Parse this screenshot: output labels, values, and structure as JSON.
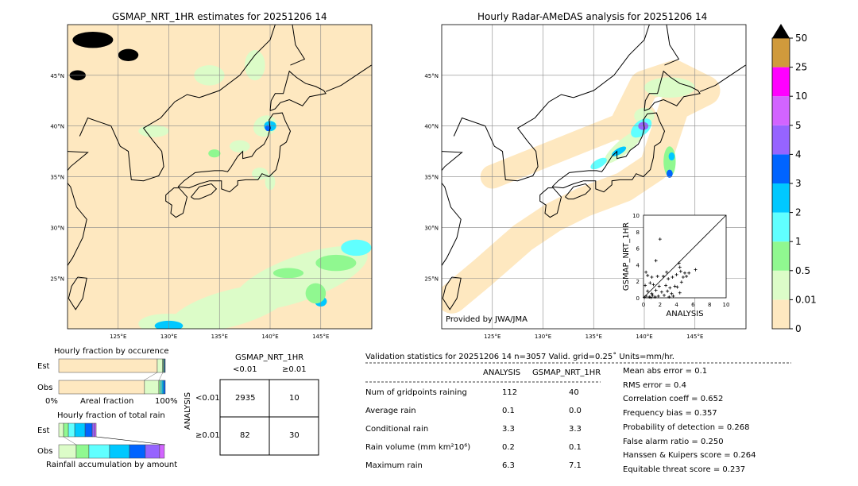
{
  "map_left": {
    "title": "GSMAP_NRT_1HR estimates for 20251206 14",
    "lon_ticks": [
      "125°E",
      "130°E",
      "135°E",
      "140°E",
      "145°E"
    ],
    "lat_ticks": [
      "45°N",
      "40°N",
      "35°N",
      "30°N",
      "25°N"
    ]
  },
  "map_right": {
    "title": "Hourly Radar-AMeDAS analysis for 20251206 14",
    "lon_ticks": [
      "125°E",
      "130°E",
      "135°E",
      "140°E",
      "145°E"
    ],
    "lat_ticks": [
      "45°N",
      "40°N",
      "35°N",
      "30°N",
      "25°N"
    ],
    "credit": "Provided by JWA/JMA"
  },
  "colorbar": {
    "labels": [
      "0",
      "0.01",
      "0.5",
      "1",
      "2",
      "3",
      "4",
      "5",
      "10",
      "25",
      "50"
    ],
    "colors": [
      "#fee8c0",
      "#dcfcc8",
      "#90f890",
      "#60ffff",
      "#00c8ff",
      "#0064ff",
      "#9664ff",
      "#d264ff",
      "#ff00ff",
      "#d09a3c"
    ],
    "extend_color": "#000000"
  },
  "chart_data": [
    {
      "type": "scatter",
      "xlabel": "ANALYSIS",
      "ylabel": "GSMAP_NRT_1HR",
      "xlim": [
        0,
        10
      ],
      "ylim": [
        0,
        10
      ],
      "x_ticks": [
        "0",
        "2",
        "4",
        "6",
        "8",
        "10"
      ],
      "y_ticks": [
        "0",
        "2",
        "4",
        "6",
        "8",
        "10"
      ],
      "points": [
        [
          2,
          7.1
        ],
        [
          1.5,
          4.5
        ],
        [
          0.3,
          3.1
        ],
        [
          0.5,
          2.7
        ],
        [
          1,
          2.5
        ],
        [
          1.7,
          2.6
        ],
        [
          2.4,
          2.6
        ],
        [
          2.8,
          3.1
        ],
        [
          3,
          2.3
        ],
        [
          3.5,
          2.5
        ],
        [
          4.3,
          4.2
        ],
        [
          4.4,
          3.7
        ],
        [
          4.5,
          3.2
        ],
        [
          5,
          3
        ],
        [
          5.5,
          3
        ],
        [
          6.3,
          3.4
        ],
        [
          4,
          2.8
        ],
        [
          4.8,
          2.5
        ],
        [
          5.2,
          2.6
        ],
        [
          0.2,
          1.5
        ],
        [
          0.8,
          1.8
        ],
        [
          1.2,
          1.6
        ],
        [
          1.9,
          1.4
        ],
        [
          2.7,
          1.5
        ],
        [
          3.2,
          1.2
        ],
        [
          3.8,
          1.4
        ],
        [
          4.1,
          1.3
        ],
        [
          4.6,
          1.9
        ],
        [
          4.4,
          0.6
        ],
        [
          0.5,
          0.8
        ],
        [
          1,
          0.5
        ],
        [
          1.5,
          0.9
        ],
        [
          2.2,
          0.7
        ],
        [
          2.9,
          0.8
        ],
        [
          3.4,
          0.5
        ],
        [
          0.3,
          0.2
        ],
        [
          0.7,
          0.1
        ],
        [
          1.1,
          0.3
        ],
        [
          1.4,
          0.1
        ],
        [
          1.8,
          0.2
        ],
        [
          2.5,
          0.3
        ],
        [
          3.1,
          0.1
        ],
        [
          3.6,
          0.2
        ],
        [
          0.1,
          0.05
        ],
        [
          0.9,
          0.05
        ]
      ]
    },
    {
      "type": "table",
      "title": "GSMAP_NRT_1HR",
      "ylabel": "ANALYSIS",
      "col_labels": [
        "<0.01",
        "≥0.01"
      ],
      "row_labels": [
        "<0.01",
        "≥0.01"
      ],
      "values": [
        [
          2935,
          10
        ],
        [
          82,
          30
        ]
      ]
    },
    {
      "type": "bar",
      "title": "Hourly fraction by occurence",
      "xlabel": "Areal fraction",
      "x_min_label": "0%",
      "x_max_label": "100%",
      "rows": [
        "Est",
        "Obs"
      ],
      "series": [
        {
          "values_percent": [
            92.5,
            5,
            0.8,
            0.6,
            0.5,
            0.6
          ]
        },
        {
          "values_percent": [
            80.5,
            13.5,
            1.5,
            1.5,
            1.5,
            1.5
          ]
        }
      ]
    },
    {
      "type": "bar",
      "title": "Hourly fraction of total rain",
      "xlabel": "Rainfall accumulation by amount",
      "rows": [
        "Est",
        "Obs"
      ],
      "series": [
        {
          "values_percent": [
            4.5,
            4.5,
            6,
            9.7,
            6.7,
            2.2,
            1.5
          ]
        },
        {
          "values_percent": [
            16.4,
            11.9,
            19.4,
            18.7,
            14.9,
            13.4,
            4.5
          ]
        }
      ]
    }
  ],
  "contingency": {
    "title": "GSMAP_NRT_1HR",
    "col1": "<0.01",
    "col2": "≥0.01",
    "ylabel": "ANALYSIS",
    "row1": "<0.01",
    "row2": "≥0.01",
    "v11": "2935",
    "v12": "10",
    "v21": "82",
    "v22": "30"
  },
  "occurrence": {
    "title": "Hourly fraction by occurence",
    "est": "Est",
    "obs": "Obs",
    "x0": "0%",
    "xl": "Areal fraction",
    "x1": "100%"
  },
  "totalrain": {
    "title": "Hourly fraction of total rain",
    "est": "Est",
    "obs": "Obs",
    "xl": "Rainfall accumulation by amount"
  },
  "stats": {
    "header": "Validation statistics for 20251206 14  n=3057 Valid. grid=0.25˚ Units=mm/hr.",
    "col_analysis": "ANALYSIS",
    "col_gsmap": "GSMAP_NRT_1HR",
    "rows": [
      {
        "label": "Num of gridpoints raining",
        "a": "112",
        "g": "40"
      },
      {
        "label": "Average rain",
        "a": "0.1",
        "g": "0.0"
      },
      {
        "label": "Conditional rain",
        "a": "3.3",
        "g": "3.3"
      },
      {
        "label": "Rain volume (mm km²10⁶)",
        "a": "0.2",
        "g": "0.1"
      },
      {
        "label": "Maximum rain",
        "a": "6.3",
        "g": "7.1"
      }
    ],
    "scores": [
      "Mean abs error =    0.1",
      "RMS error =    0.4",
      "Correlation coeff =  0.652",
      "Frequency bias =  0.357",
      "Probability of detection =  0.268",
      "False alarm ratio =  0.250",
      "Hanssen & Kuipers score =  0.264",
      "Equitable threat score =  0.237"
    ]
  }
}
